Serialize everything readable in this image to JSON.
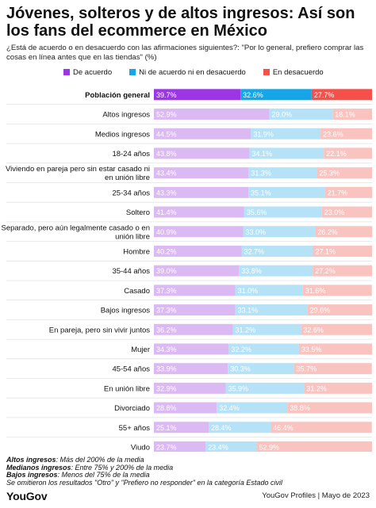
{
  "title": "Jóvenes, solteros y de altos ingresos: Así son los fans del ecommerce en México",
  "subtitle": "¿Está de acuerdo o en desacuerdo con las afirmaciones siguientes?: \"Por lo general, prefiero comprar las cosas en línea antes que en las tiendas\" (%)",
  "colors": {
    "acuerdo": "#9b35e6",
    "neutral": "#16a6e8",
    "desacuerdo": "#f5504a",
    "acuerdo_light": "#dbb9f3",
    "neutral_light": "#b5e2f7",
    "desacuerdo_light": "#f9c3c0"
  },
  "chart_data": {
    "type": "bar",
    "stacked": true,
    "orientation": "horizontal",
    "categories": [
      "Población general",
      "Altos ingresos",
      "Medios ingresos",
      "18-24 años",
      "Viviendo en pareja pero sin estar casado ni en unión libre",
      "25-34 años",
      "Soltero",
      "Separado, pero aún legalmente casado o en unión libre",
      "Hombre",
      "35-44 años",
      "Casado",
      "Bajos ingresos",
      "En pareja, pero sin vivir juntos",
      "Mujer",
      "45-54 años",
      "En unión libre",
      "Divorciado",
      "55+ años",
      "Viudo"
    ],
    "series": [
      {
        "name": "De acuerdo",
        "values": [
          39.7,
          52.9,
          44.5,
          43.8,
          43.4,
          43.3,
          41.4,
          40.9,
          40.2,
          39.0,
          37.3,
          37.3,
          36.2,
          34.3,
          33.9,
          32.9,
          28.8,
          25.1,
          23.7
        ]
      },
      {
        "name": "Ni de acuerdo ni en desacuerdo",
        "values": [
          32.6,
          29.0,
          31.9,
          34.1,
          31.3,
          35.1,
          35.6,
          33.0,
          32.7,
          33.8,
          31.0,
          33.1,
          31.2,
          32.2,
          30.3,
          35.9,
          32.4,
          28.4,
          23.4
        ]
      },
      {
        "name": "En desacuerdo",
        "values": [
          27.7,
          18.1,
          23.6,
          22.1,
          25.3,
          21.7,
          23.0,
          26.2,
          27.1,
          27.2,
          31.6,
          29.6,
          32.6,
          33.5,
          35.7,
          31.2,
          38.8,
          46.4,
          52.9
        ]
      }
    ],
    "xlim": [
      0,
      100
    ]
  },
  "notes": [
    {
      "label": "Altos ingresos",
      "text": ": Más del 200% de la media"
    },
    {
      "label": "Medianos ingresos",
      "text": ": Entre 75% y 200% de la media"
    },
    {
      "label": "Bajos ingresos",
      "text": ": Menos del 75% de la media"
    }
  ],
  "note_extra": "Se omitieron los resultados \"Otro\" y \"Prefiero no responder\" en la categoría Estado civil",
  "logo": "YouGov",
  "source": "YouGov Profiles | Mayo de 2023"
}
